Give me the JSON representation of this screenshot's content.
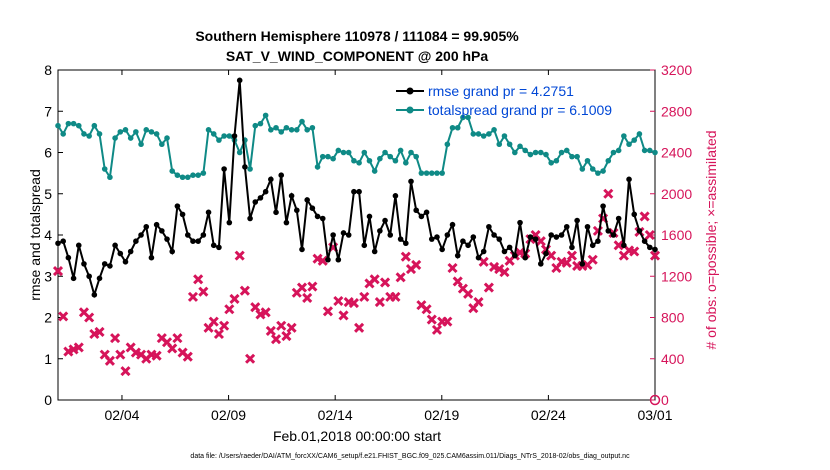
{
  "chart_data": {
    "type": "line",
    "title_line1": "Southern Hemisphere 110978 / 111084 = 99.905%",
    "title_line2": "SAT_V_WIND_COMPONENT @ 200 hPa",
    "xlabel": "Feb.01,2018 00:00:00 start",
    "ylabel_left": "rmse and totalspread",
    "ylabel_right": "# of obs: o=possible; ×=assimilated",
    "footnote": "data file: /Users/raeder/DAI/ATM_forcXX/CAM6_setup/f.e21.FHIST_BGC.f09_025.CAM6assim.011/Diags_NTrS_2018-02/obs_diag_output.nc",
    "x_ticks": [
      {
        "day": 4,
        "label": "02/04"
      },
      {
        "day": 9,
        "label": "02/09"
      },
      {
        "day": 14,
        "label": "02/14"
      },
      {
        "day": 19,
        "label": "02/19"
      },
      {
        "day": 24,
        "label": "02/24"
      },
      {
        "day": 29,
        "label": "03/01"
      }
    ],
    "xlim": [
      1.0,
      29.0
    ],
    "ylim_left": [
      0,
      8
    ],
    "yticks_left": [
      "0",
      "1",
      "2",
      "3",
      "4",
      "5",
      "6",
      "7",
      "8"
    ],
    "ylim_right": [
      0,
      3200
    ],
    "yticks_right": [
      "0",
      "400",
      "800",
      "1200",
      "1600",
      "2000",
      "2400",
      "2800",
      "3200"
    ],
    "colors": {
      "rmse": "#000000",
      "spread": "#0f8a86",
      "obs": "#d6145a",
      "rmse_legend": "#0047d6",
      "spread_legend": "#0047d6"
    },
    "legend_position": "top-right",
    "series": [
      {
        "name": "rmse grand pr = 4.2751",
        "values": [
          3.8,
          3.85,
          3.45,
          2.95,
          3.75,
          3.3,
          3.0,
          2.55,
          2.95,
          3.3,
          3.25,
          3.75,
          3.55,
          3.35,
          3.6,
          3.85,
          4.0,
          4.2,
          3.45,
          4.25,
          4.1,
          3.9,
          3.6,
          4.7,
          4.5,
          4.0,
          3.85,
          3.85,
          4.0,
          4.55,
          3.75,
          3.7,
          5.6,
          4.3,
          6.4,
          7.75,
          5.65,
          4.4,
          4.8,
          4.9,
          5.05,
          5.35,
          4.55,
          5.45,
          4.3,
          4.95,
          4.6,
          3.65,
          4.85,
          4.65,
          4.45,
          4.4,
          3.4,
          4.0,
          3.4,
          4.05,
          4.0,
          5.05,
          5.05,
          3.75,
          4.45,
          3.6,
          4.1,
          4.35,
          4.0,
          4.95,
          3.9,
          3.8,
          5.3,
          4.6,
          4.45,
          4.55,
          3.9,
          3.95,
          3.65,
          4.0,
          4.25,
          3.5,
          3.85,
          3.75,
          3.95,
          3.45,
          3.6,
          4.2,
          4.0,
          3.9,
          3.6,
          3.7,
          3.5,
          4.3,
          3.45,
          3.95,
          3.9,
          3.3,
          3.55,
          4.0,
          3.95,
          4.0,
          4.2,
          3.7,
          4.35,
          3.3,
          4.2,
          3.75,
          3.85,
          4.7,
          4.1,
          4.0,
          4.4,
          3.75,
          5.35,
          4.5,
          4.1,
          3.85,
          3.7,
          3.65
        ]
      },
      {
        "name": "totalspread grand pr = 6.1009",
        "values": [
          6.65,
          6.45,
          6.7,
          6.7,
          6.65,
          6.45,
          6.4,
          6.65,
          6.45,
          5.6,
          5.4,
          6.35,
          6.5,
          6.55,
          6.35,
          6.5,
          6.2,
          6.55,
          6.5,
          6.45,
          6.2,
          6.35,
          5.55,
          5.45,
          5.4,
          5.4,
          5.45,
          5.45,
          5.5,
          6.55,
          6.45,
          6.3,
          6.4,
          6.4,
          6.3,
          6.0,
          6.3,
          5.6,
          6.65,
          6.7,
          6.9,
          6.55,
          6.6,
          6.5,
          6.6,
          6.55,
          6.55,
          6.75,
          6.55,
          6.6,
          5.65,
          5.9,
          5.9,
          5.85,
          6.05,
          6.0,
          6.0,
          5.8,
          5.75,
          6.0,
          5.8,
          5.55,
          5.85,
          6.0,
          5.9,
          5.8,
          6.05,
          5.75,
          6.0,
          5.9,
          5.5,
          5.5,
          5.5,
          5.5,
          5.5,
          6.2,
          6.6,
          6.6,
          6.85,
          6.85,
          6.45,
          6.45,
          6.4,
          6.45,
          6.55,
          6.2,
          6.4,
          6.2,
          6.0,
          6.15,
          6.05,
          5.95,
          6.0,
          6.0,
          5.95,
          5.75,
          5.8,
          6.0,
          6.05,
          5.9,
          5.9,
          5.6,
          5.8,
          5.6,
          5.5,
          5.55,
          5.8,
          6.0,
          6.05,
          6.4,
          6.2,
          6.3,
          6.45,
          6.05,
          6.05,
          6.0
        ]
      },
      {
        "name": "obs_assimilated",
        "values": [
          1250,
          810,
          470,
          490,
          510,
          850,
          800,
          640,
          660,
          440,
          380,
          600,
          440,
          280,
          510,
          460,
          440,
          400,
          440,
          430,
          600,
          560,
          500,
          600,
          460,
          420,
          1000,
          1170,
          1050,
          700,
          760,
          640,
          720,
          880,
          980,
          1400,
          1060,
          400,
          900,
          830,
          850,
          670,
          590,
          720,
          620,
          700,
          1040,
          1090,
          990,
          1100,
          1370,
          1350,
          860,
          1480,
          960,
          820,
          950,
          940,
          700,
          1000,
          1130,
          1170,
          950,
          1140,
          1000,
          1000,
          1190,
          1390,
          1270,
          1310,
          920,
          880,
          780,
          680,
          760,
          760,
          1280,
          1150,
          1080,
          1030,
          890,
          950,
          1340,
          1090,
          1290,
          1270,
          1240,
          1350,
          1400,
          1430,
          1420,
          1560,
          1600,
          1540,
          1460,
          1400,
          1280,
          1340,
          1330,
          1400,
          1300,
          1300,
          1310,
          1360,
          1640,
          1760,
          2000,
          1620,
          1500,
          1400,
          1450,
          1440,
          1630,
          1780,
          1600,
          1400
        ]
      }
    ]
  }
}
